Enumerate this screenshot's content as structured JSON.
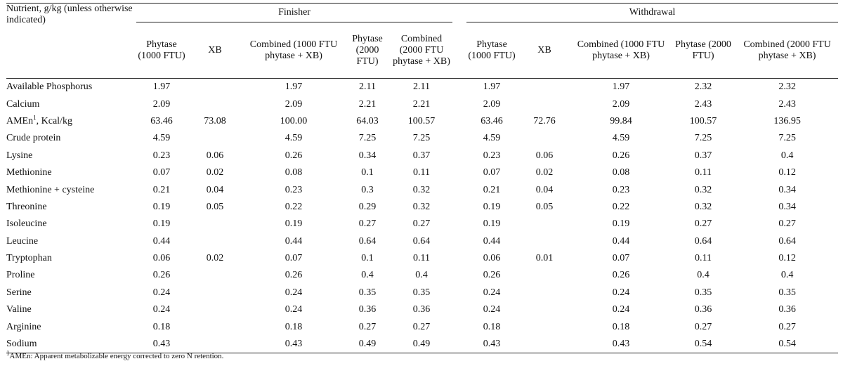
{
  "header": {
    "nutrient": "Nutrient, g/kg (unless otherwise indicated)",
    "group_finisher": "Finisher",
    "group_withdrawal": "Withdrawal"
  },
  "columns": {
    "finisher": [
      "Phytase (1000 FTU)",
      "XB",
      "Combined (1000 FTU phytase + XB)",
      "Phytase (2000 FTU)",
      "Combined (2000 FTU phytase + XB)"
    ],
    "withdrawal": [
      "Phytase (1000 FTU)",
      "XB",
      "Combined (1000 FTU phytase + XB)",
      "Phytase (2000 FTU)",
      "Combined (2000 FTU phytase + XB)"
    ]
  },
  "rows": [
    {
      "name": "Available Phosphorus",
      "values": [
        "1.97",
        "",
        "1.97",
        "2.11",
        "2.11",
        "1.97",
        "",
        "1.97",
        "2.32",
        "2.32"
      ]
    },
    {
      "name": "Calcium",
      "values": [
        "2.09",
        "",
        "2.09",
        "2.21",
        "2.21",
        "2.09",
        "",
        "2.09",
        "2.43",
        "2.43"
      ]
    },
    {
      "name": "AMEn",
      "sup": "1",
      "suffix": ", Kcal/kg",
      "values": [
        "63.46",
        "73.08",
        "100.00",
        "64.03",
        "100.57",
        "63.46",
        "72.76",
        "99.84",
        "100.57",
        "136.95"
      ]
    },
    {
      "name": "Crude protein",
      "values": [
        "4.59",
        "",
        "4.59",
        "7.25",
        "7.25",
        "4.59",
        "",
        "4.59",
        "7.25",
        "7.25"
      ]
    },
    {
      "name": "Lysine",
      "values": [
        "0.23",
        "0.06",
        "0.26",
        "0.34",
        "0.37",
        "0.23",
        "0.06",
        "0.26",
        "0.37",
        "0.4"
      ]
    },
    {
      "name": "Methionine",
      "values": [
        "0.07",
        "0.02",
        "0.08",
        "0.1",
        "0.11",
        "0.07",
        "0.02",
        "0.08",
        "0.11",
        "0.12"
      ]
    },
    {
      "name": "Methionine + cysteine",
      "values": [
        "0.21",
        "0.04",
        "0.23",
        "0.3",
        "0.32",
        "0.21",
        "0.04",
        "0.23",
        "0.32",
        "0.34"
      ]
    },
    {
      "name": "Threonine",
      "values": [
        "0.19",
        "0.05",
        "0.22",
        "0.29",
        "0.32",
        "0.19",
        "0.05",
        "0.22",
        "0.32",
        "0.34"
      ]
    },
    {
      "name": "Isoleucine",
      "values": [
        "0.19",
        "",
        "0.19",
        "0.27",
        "0.27",
        "0.19",
        "",
        "0.19",
        "0.27",
        "0.27"
      ]
    },
    {
      "name": "Leucine",
      "values": [
        "0.44",
        "",
        "0.44",
        "0.64",
        "0.64",
        "0.44",
        "",
        "0.44",
        "0.64",
        "0.64"
      ]
    },
    {
      "name": "Tryptophan",
      "values": [
        "0.06",
        "0.02",
        "0.07",
        "0.1",
        "0.11",
        "0.06",
        "0.01",
        "0.07",
        "0.11",
        "0.12"
      ]
    },
    {
      "name": "Proline",
      "values": [
        "0.26",
        "",
        "0.26",
        "0.4",
        "0.4",
        "0.26",
        "",
        "0.26",
        "0.4",
        "0.4"
      ]
    },
    {
      "name": "Serine",
      "values": [
        "0.24",
        "",
        "0.24",
        "0.35",
        "0.35",
        "0.24",
        "",
        "0.24",
        "0.35",
        "0.35"
      ]
    },
    {
      "name": "Valine",
      "values": [
        "0.24",
        "",
        "0.24",
        "0.36",
        "0.36",
        "0.24",
        "",
        "0.24",
        "0.36",
        "0.36"
      ]
    },
    {
      "name": "Arginine",
      "values": [
        "0.18",
        "",
        "0.18",
        "0.27",
        "0.27",
        "0.18",
        "",
        "0.18",
        "0.27",
        "0.27"
      ]
    },
    {
      "name": "Sodium",
      "values": [
        "0.43",
        "",
        "0.43",
        "0.49",
        "0.49",
        "0.43",
        "",
        "0.43",
        "0.54",
        "0.54"
      ]
    }
  ],
  "footnote": {
    "sup": "1",
    "text": "AMEn: Apparent metabolizable energy corrected to zero N retention."
  }
}
